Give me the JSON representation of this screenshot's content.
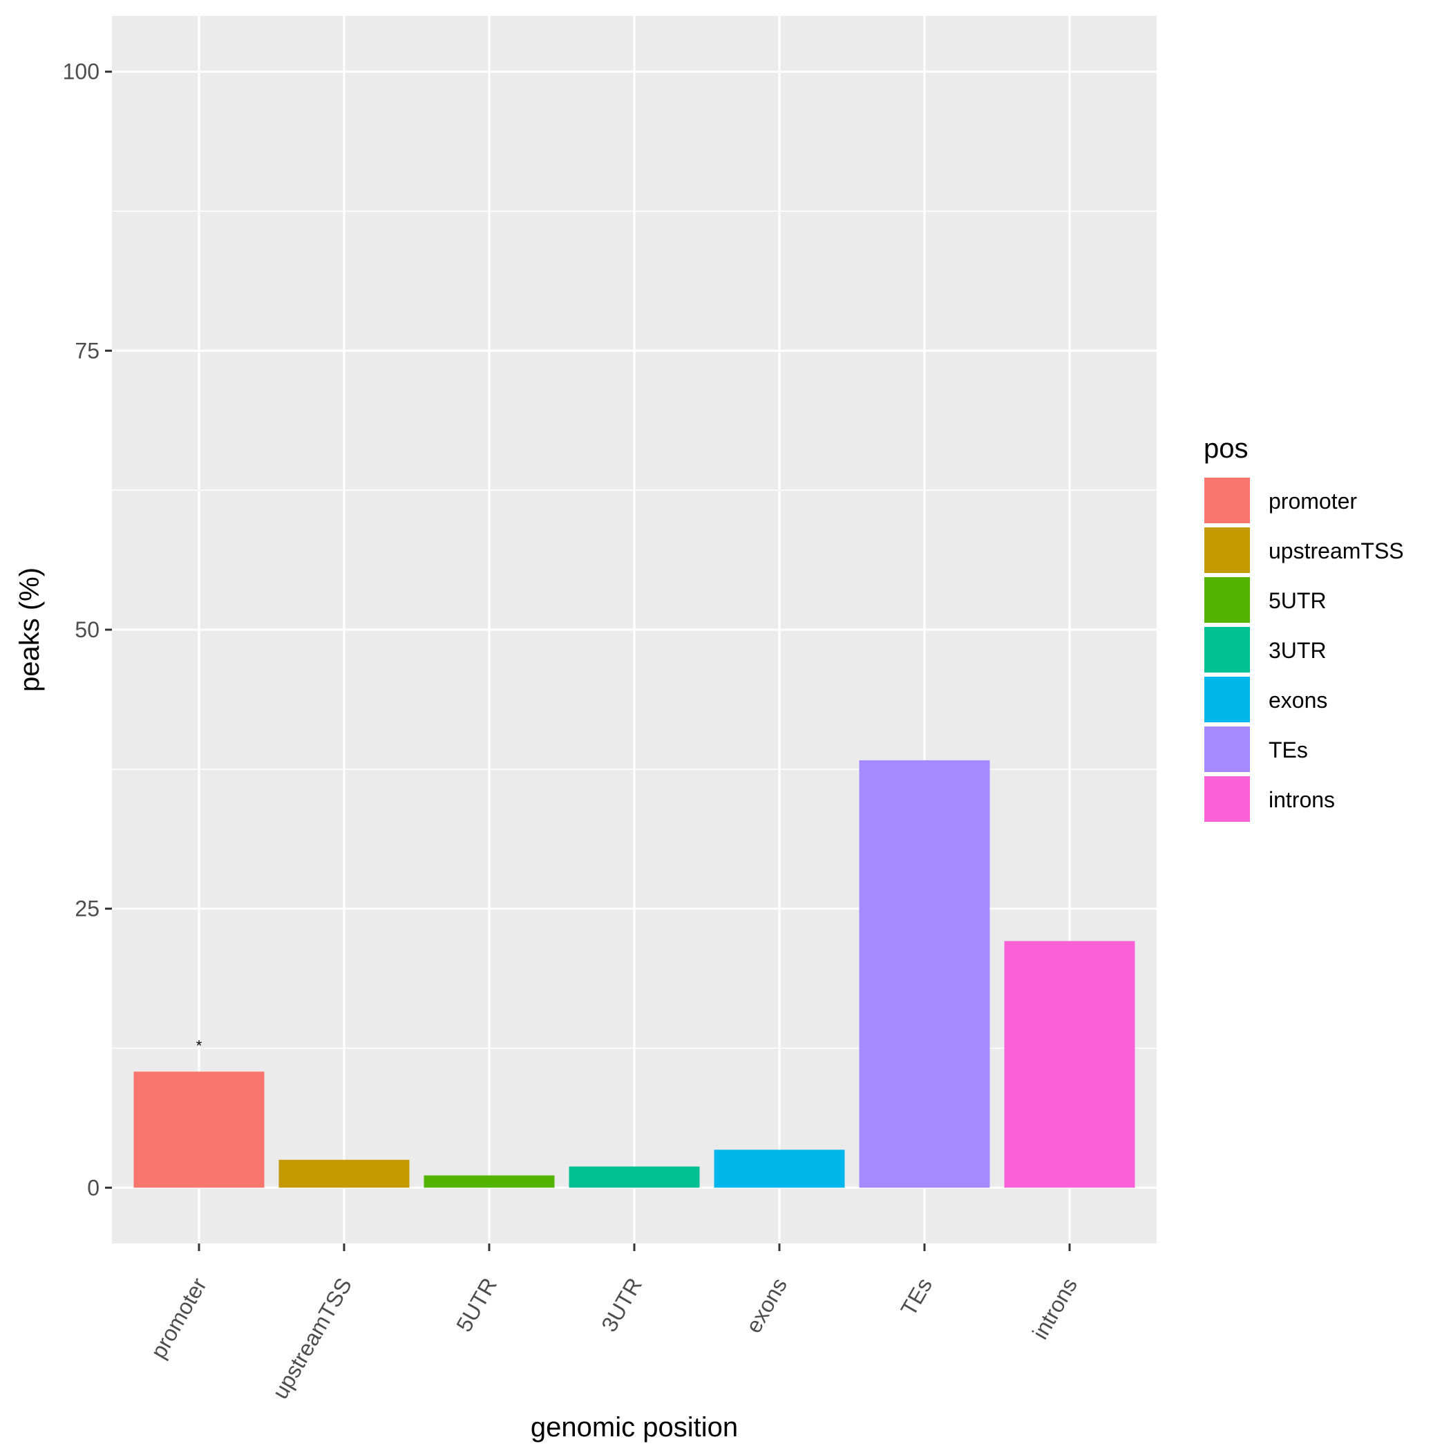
{
  "chart_data": {
    "type": "bar",
    "categories": [
      "promoter",
      "upstreamTSS",
      "5UTR",
      "3UTR",
      "exons",
      "TEs",
      "introns"
    ],
    "values": [
      10.4,
      2.5,
      1.1,
      1.9,
      3.4,
      38.3,
      22.1
    ],
    "colors": [
      "#F8766D",
      "#C49A00",
      "#53B400",
      "#00C094",
      "#00B6EB",
      "#A58AFF",
      "#FB61D7"
    ],
    "annotations": [
      {
        "category": "promoter",
        "text": "*"
      }
    ],
    "xlabel": "genomic position",
    "ylabel": "peaks (%)",
    "ylim": [
      -5,
      105
    ],
    "yticks": [
      0,
      25,
      50,
      75,
      100
    ],
    "ytick_labels": [
      "0",
      "25",
      "50",
      "75",
      "100"
    ],
    "minor_yticks": [
      12.5,
      37.5,
      62.5,
      87.5
    ],
    "grid": true,
    "legend": {
      "title": "pos",
      "placement": "right",
      "items": [
        "promoter",
        "upstreamTSS",
        "5UTR",
        "3UTR",
        "exons",
        "TEs",
        "introns"
      ]
    }
  }
}
